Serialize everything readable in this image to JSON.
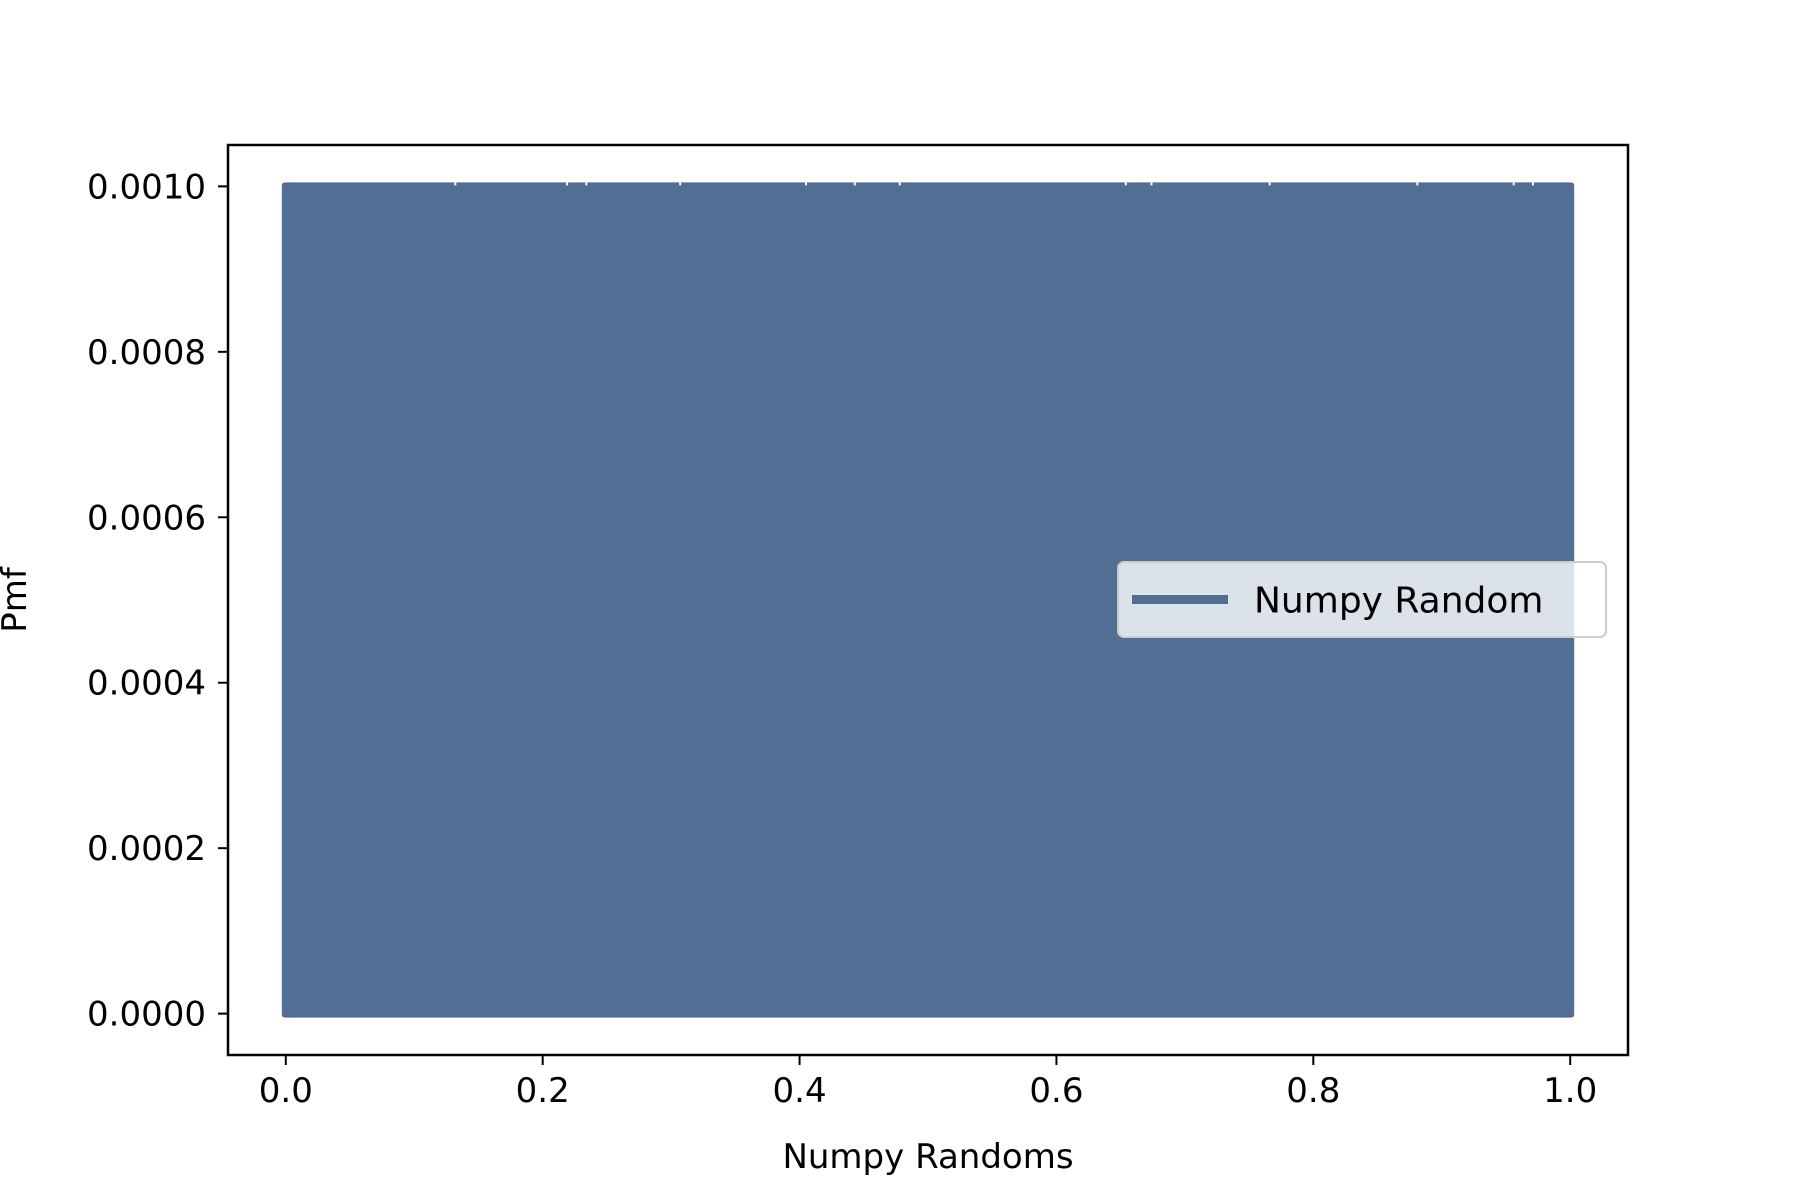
{
  "chart_data": {
    "type": "line",
    "title": "",
    "xlabel": "Numpy Randoms",
    "ylabel": "Pmf",
    "xlim": [
      -0.045,
      1.045
    ],
    "ylim": [
      -5e-05,
      0.00105
    ],
    "xticks": [
      0.0,
      0.2,
      0.4,
      0.6,
      0.8,
      1.0
    ],
    "xtick_labels": [
      "0.0",
      "0.2",
      "0.4",
      "0.6",
      "0.8",
      "1.0"
    ],
    "yticks": [
      0.0,
      0.0002,
      0.0004,
      0.0006,
      0.0008,
      0.001
    ],
    "ytick_labels": [
      "0.0000",
      "0.0002",
      "0.0004",
      "0.0006",
      "0.0008",
      "0.0010"
    ],
    "grid": false,
    "legend_position": "center-right",
    "series": [
      {
        "name": "Numpy Random",
        "color": "#526e94",
        "x_range": [
          0.0,
          1.0
        ],
        "y_values_range": [
          0.0,
          0.001
        ],
        "description_values": "Pmf of 1000 uniform random values between 0 and 1, each with probability 0.001, drawn as vertical stems"
      }
    ]
  }
}
